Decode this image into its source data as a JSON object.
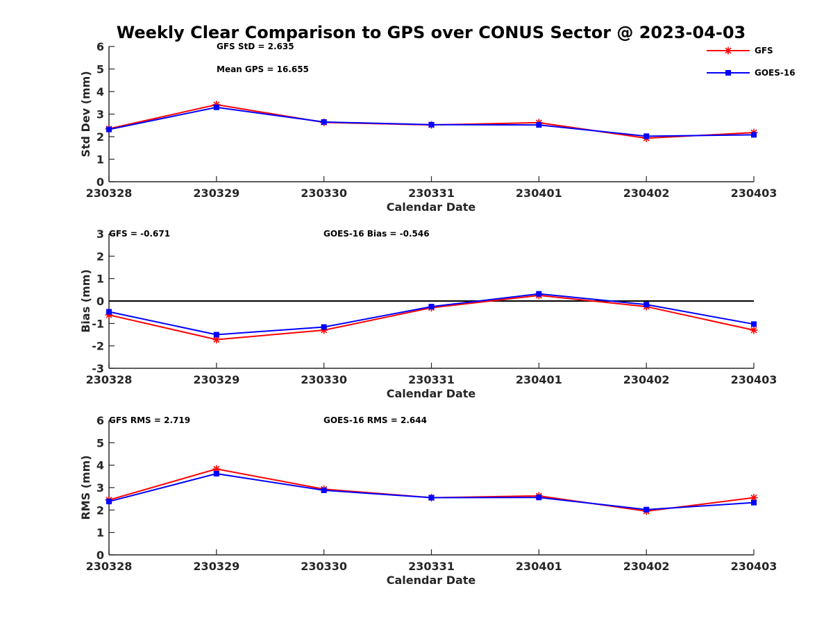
{
  "figure": {
    "title": "Weekly Clear Comparison to GPS over CONUS Sector @ 2023-04-03"
  },
  "legend": {
    "placement": "top-right",
    "entries": [
      {
        "name": "GFS",
        "color": "#ff0000",
        "marker": "asterisk"
      },
      {
        "name": "GOES-16",
        "color": "#0000ff",
        "marker": "square"
      }
    ]
  },
  "chart_data": [
    {
      "type": "line",
      "x": [
        "230328",
        "230329",
        "230330",
        "230331",
        "230401",
        "230402",
        "230403"
      ],
      "xlabel": "Calendar Date",
      "ylabel": "Std Dev (mm)",
      "ylim": [
        0,
        6
      ],
      "yticks": [
        "0",
        "1",
        "2",
        "3",
        "4",
        "5",
        "6"
      ],
      "grid": false,
      "zero_line": false,
      "annotations": [
        "GFS StD = 2.635",
        "Mean GPS = 16.655"
      ],
      "series": [
        {
          "name": "GFS",
          "color": "#ff0000",
          "values": [
            2.35,
            3.42,
            2.63,
            2.52,
            2.62,
            1.93,
            2.18
          ]
        },
        {
          "name": "GOES-16",
          "color": "#0000ff",
          "values": [
            2.32,
            3.3,
            2.65,
            2.53,
            2.52,
            2.02,
            2.08
          ]
        }
      ]
    },
    {
      "type": "line",
      "x": [
        "230328",
        "230329",
        "230330",
        "230331",
        "230401",
        "230402",
        "230403"
      ],
      "xlabel": "Calendar Date",
      "ylabel": "Bias (mm)",
      "ylim": [
        -3,
        3
      ],
      "yticks": [
        "-3",
        "-2",
        "-1",
        "0",
        "1",
        "2",
        "3"
      ],
      "grid": false,
      "zero_line": true,
      "annotations": [
        "GFS = -0.671",
        "GOES-16 Bias  = -0.546"
      ],
      "series": [
        {
          "name": "GFS",
          "color": "#ff0000",
          "values": [
            -0.62,
            -1.72,
            -1.3,
            -0.3,
            0.25,
            -0.25,
            -1.3
          ]
        },
        {
          "name": "GOES-16",
          "color": "#0000ff",
          "values": [
            -0.48,
            -1.5,
            -1.16,
            -0.25,
            0.32,
            -0.16,
            -1.03
          ]
        }
      ]
    },
    {
      "type": "line",
      "x": [
        "230328",
        "230329",
        "230330",
        "230331",
        "230401",
        "230402",
        "230403"
      ],
      "xlabel": "Calendar Date",
      "ylabel": "RMS (mm)",
      "ylim": [
        0,
        6
      ],
      "yticks": [
        "0",
        "1",
        "2",
        "3",
        "4",
        "5",
        "6"
      ],
      "grid": false,
      "zero_line": false,
      "annotations": [
        "GFS RMS = 2.719",
        "GOES-16 RMS = 2.644"
      ],
      "series": [
        {
          "name": "GFS",
          "color": "#ff0000",
          "values": [
            2.45,
            3.83,
            2.93,
            2.55,
            2.63,
            1.95,
            2.55
          ]
        },
        {
          "name": "GOES-16",
          "color": "#0000ff",
          "values": [
            2.38,
            3.62,
            2.88,
            2.55,
            2.56,
            2.02,
            2.33
          ]
        }
      ]
    }
  ]
}
